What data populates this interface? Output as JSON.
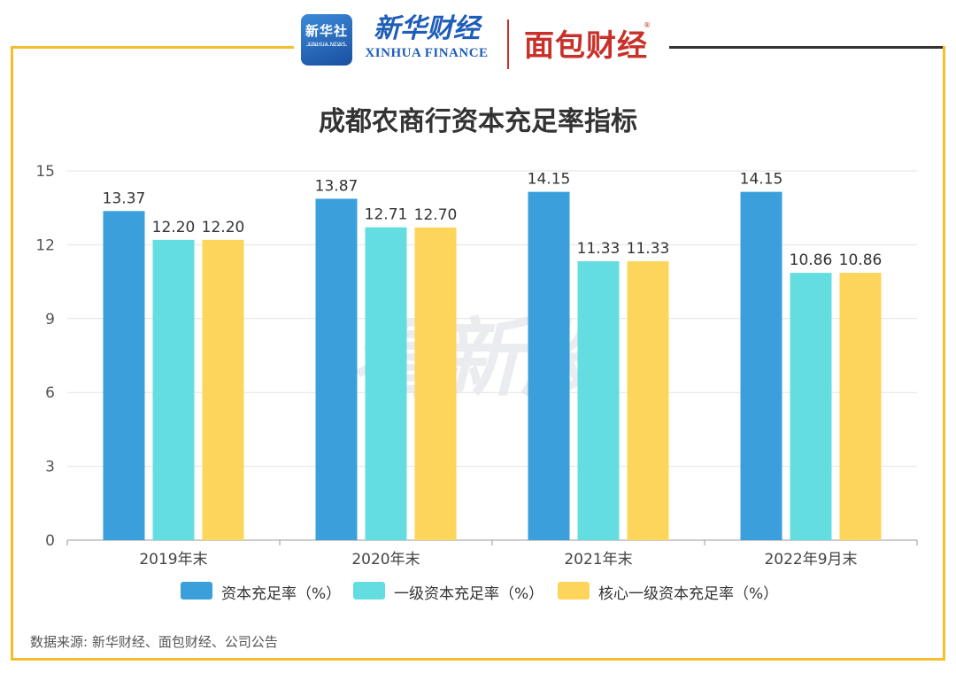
{
  "header": {
    "xinhua_news_cn": "新华社",
    "xinhua_news_en": "XINHUA NEWS",
    "xinhua_finance_cn": "新华财经",
    "xinhua_finance_en": "XINHUA FINANCE",
    "mianbao_logo": "面包财经",
    "registered_mark": "®"
  },
  "watermark": "看新股",
  "source_note": "数据来源: 新华财经、面包财经、公司公告",
  "colors": {
    "frame": "#F5BE2C",
    "series_1": "#3A9FDB",
    "series_2": "#64DDE0",
    "series_3": "#FDD55B"
  },
  "chart_data": {
    "type": "bar",
    "title": "成都农商行资本充足率指标",
    "categories": [
      "2019年末",
      "2020年末",
      "2021年末",
      "2022年9月末"
    ],
    "series": [
      {
        "name": "资本充足率（%）",
        "values": [
          13.37,
          13.87,
          14.15,
          14.15
        ],
        "labels": [
          "13.37",
          "13.87",
          "14.15",
          "14.15"
        ]
      },
      {
        "name": "一级资本充足率（%）",
        "values": [
          12.2,
          12.71,
          11.33,
          10.86
        ],
        "labels": [
          "12.20",
          "12.71",
          "11.33",
          "10.86"
        ]
      },
      {
        "name": "核心一级资本充足率（%）",
        "values": [
          12.2,
          12.7,
          11.33,
          10.86
        ],
        "labels": [
          "12.20",
          "12.70",
          "11.33",
          "10.86"
        ]
      }
    ],
    "yticks": [
      "0",
      "3",
      "6",
      "9",
      "12",
      "15"
    ],
    "ylim": [
      0,
      15
    ],
    "grid": true,
    "legend_position": "bottom"
  }
}
